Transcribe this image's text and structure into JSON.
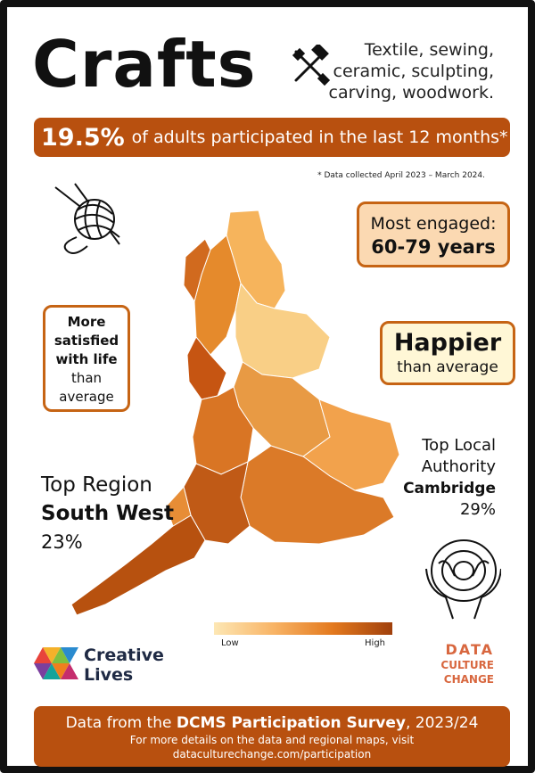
{
  "header": {
    "title": "Crafts",
    "subtitle_lines": [
      "Textile, sewing,",
      "ceramic, sculpting,",
      "carving, woodwork."
    ]
  },
  "headline": {
    "percent": "19.5%",
    "text": "of adults participated in the last 12 months*"
  },
  "footnote": "* Data collected April 2023 – March 2024.",
  "engaged": {
    "label": "Most engaged:",
    "value": "60-79 years"
  },
  "satisfied": {
    "lines": [
      "More",
      "satisfied",
      "with life"
    ],
    "rest": [
      "than",
      "average"
    ]
  },
  "happier": {
    "bold": "Happier",
    "rest": "than average"
  },
  "top_region": {
    "label": "Top Region",
    "name": "South West",
    "value": "23%"
  },
  "top_la": {
    "label1": "Top Local",
    "label2": "Authority",
    "name": "Cambridge",
    "value": "29%"
  },
  "legend": {
    "low": "Low",
    "high": "High"
  },
  "logos": {
    "creative_lives_1": "Creative",
    "creative_lives_2": "Lives",
    "dcc_1": "DATA",
    "dcc_2": "CULTURE",
    "dcc_3": "CHANGE"
  },
  "footer": {
    "prefix": "Data from the",
    "survey": "DCMS Participation Survey",
    "suffix": ", 2023/24",
    "line2": "For more details on the data and regional maps, visit",
    "line3": "dataculturechange.com/participation"
  },
  "colors": {
    "accent": "#b8500f",
    "box_border": "#c66414",
    "engaged_fill": "#fbd9b2",
    "happier_fill": "#fff7d6",
    "dcc_logo": "#d8673f"
  }
}
